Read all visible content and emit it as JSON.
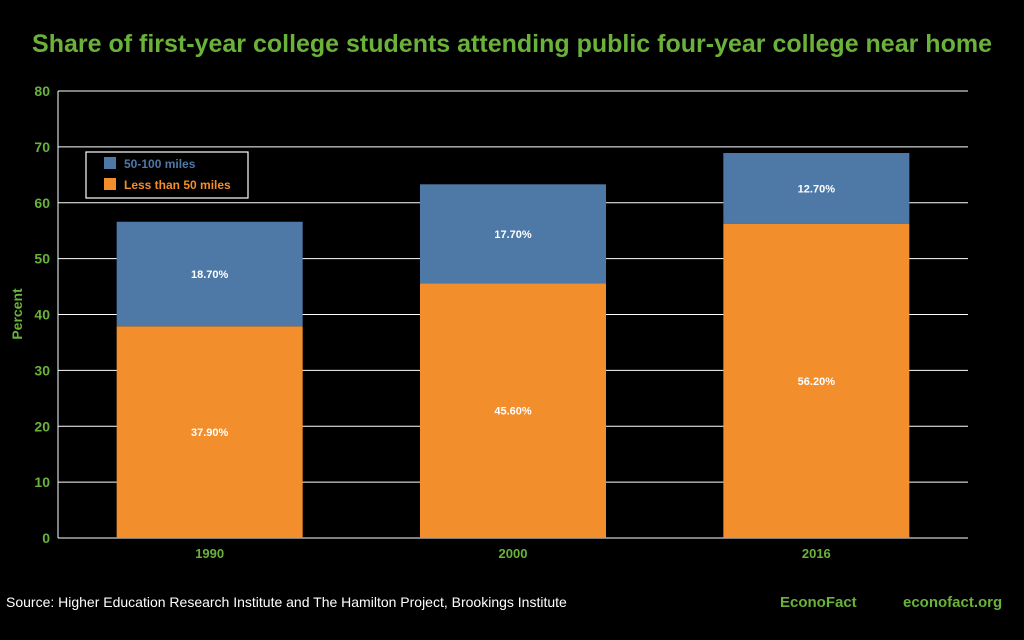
{
  "chart_data": {
    "type": "bar",
    "stacked": true,
    "title": "Share of first-year college students attending public four-year college near home",
    "xlabel": "",
    "ylabel": "Percent",
    "ylim": [
      0,
      80
    ],
    "yticks": [
      0,
      10,
      20,
      30,
      40,
      50,
      60,
      70,
      80
    ],
    "categories": [
      "1990",
      "2000",
      "2016"
    ],
    "grid": true,
    "legend_position": "top-left",
    "series": [
      {
        "name": "Less than 50 miles",
        "values": [
          37.9,
          45.6,
          56.2
        ],
        "labels": [
          "37.90%",
          "45.60%",
          "56.20%"
        ],
        "color": "#f28e2c"
      },
      {
        "name": "50-100 miles",
        "values": [
          18.7,
          17.7,
          12.7
        ],
        "labels": [
          "18.70%",
          "17.70%",
          "12.70%"
        ],
        "color": "#4e79a7"
      }
    ],
    "legend_order": [
      "50-100 miles",
      "Less than 50 miles"
    ]
  },
  "footer": {
    "source": "Source: Higher Education Research Institute and The Hamilton Project, Brookings Institute",
    "brand": "EconoFact",
    "url": "econofact.org"
  },
  "colors": {
    "background": "#000000",
    "title": "#6ab23a",
    "axis_text": "#6ab23a",
    "grid": "#ffffff",
    "label_text": "#ffffff"
  }
}
